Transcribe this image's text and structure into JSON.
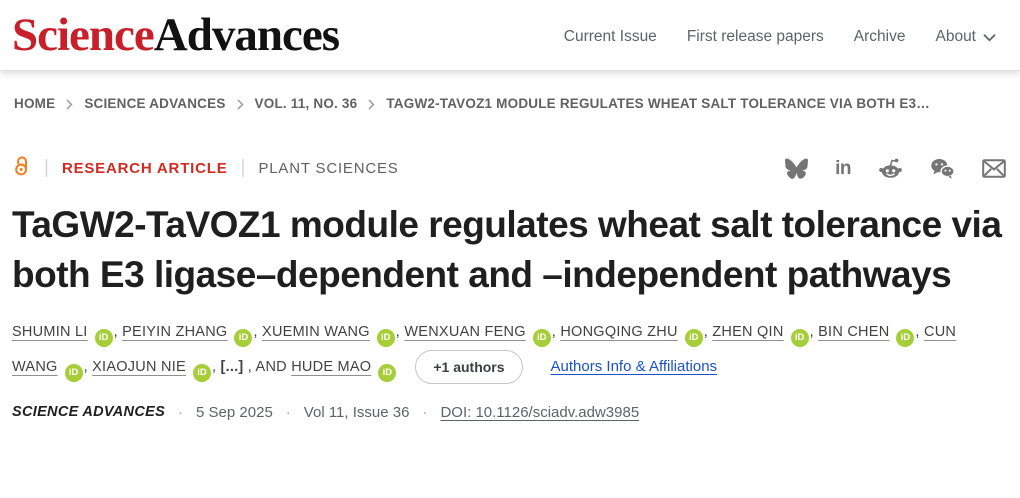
{
  "header": {
    "logo": {
      "science": "Science",
      "advances": "Advances"
    },
    "nav": {
      "current_issue": "Current Issue",
      "first_release": "First release papers",
      "archive": "Archive",
      "about": "About"
    }
  },
  "breadcrumb": {
    "home": "HOME",
    "journal": "SCIENCE ADVANCES",
    "volume": "VOL. 11, NO. 36",
    "article": "TAGW2-TAVOZ1 MODULE REGULATES WHEAT SALT TOLERANCE VIA BOTH E3…"
  },
  "article": {
    "type_label": "RESEARCH ARTICLE",
    "subject_label": "PLANT SCIENCES",
    "title": "TaGW2-TaVOZ1 module regulates wheat salt tolerance via both E3 ligase–dependent and –independent pathways",
    "orcid_label": "iD",
    "authors": [
      {
        "name": "SHUMIN LI",
        "orcid": true
      },
      {
        "name": "PEIYIN ZHANG",
        "orcid": true
      },
      {
        "name": "XUEMIN WANG",
        "orcid": true
      },
      {
        "name": "WENXUAN FENG",
        "orcid": true
      },
      {
        "name": "HONGQING ZHU",
        "orcid": true
      },
      {
        "name": "ZHEN QIN",
        "orcid": true
      },
      {
        "name": "BIN CHEN",
        "orcid": true
      },
      {
        "name": "CUN WANG",
        "orcid": true
      },
      {
        "name": "XIAOJUN NIE",
        "orcid": true
      },
      {
        "name": "HUDE MAO",
        "orcid": true
      }
    ],
    "authors_truncation": "[...]",
    "authors_conjunction": "AND",
    "more_authors_label": "+1 authors",
    "affiliations_link": "Authors Info & Affiliations",
    "citation": {
      "journal": "SCIENCE ADVANCES",
      "date": "5 Sep 2025",
      "issue": "Vol 11, Issue 36",
      "doi": "DOI: 10.1126/sciadv.adw3985"
    },
    "share_icons": [
      "bluesky",
      "linkedin",
      "reddit",
      "wechat",
      "email"
    ]
  },
  "colors": {
    "logo_red": "#c8202a",
    "article_type_red": "#d02b20",
    "orcid_green": "#a6ce39",
    "open_access_orange": "#f47e20",
    "link_blue": "#1a53c7",
    "icon_gray": "#757575"
  }
}
